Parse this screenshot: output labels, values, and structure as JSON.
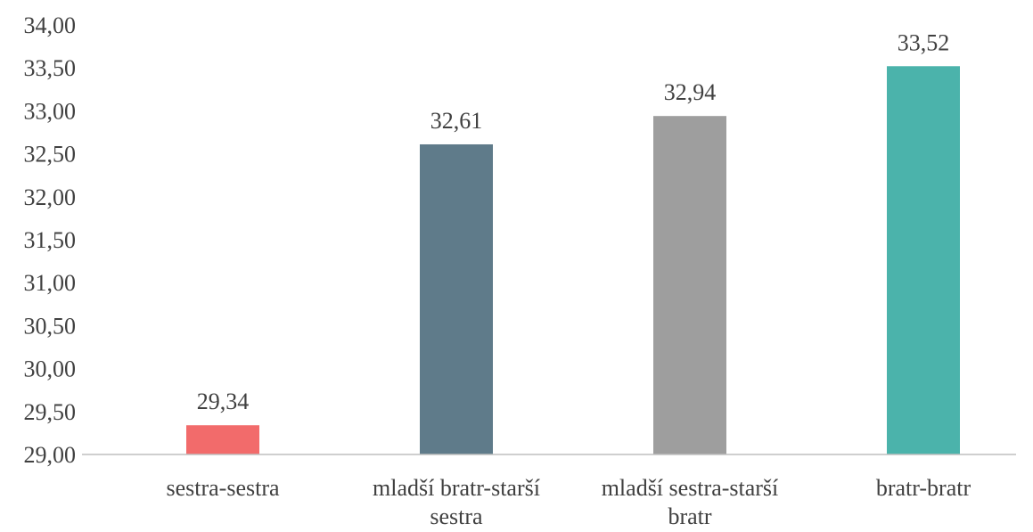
{
  "chart_data": {
    "type": "bar",
    "categories": [
      "sestra-sestra",
      "mladší bratr-starší sestra",
      "mladší sestra-starší bratr",
      "bratr-bratr"
    ],
    "values": [
      29.34,
      32.61,
      32.94,
      33.52
    ],
    "value_labels": [
      "29,34",
      "32,61",
      "32,94",
      "33,52"
    ],
    "colors": [
      "#f26b6b",
      "#5f7b8a",
      "#9e9e9e",
      "#4bb3ab"
    ],
    "ylim": [
      29,
      34
    ],
    "yticks": [
      {
        "value": 29,
        "label": "29,00"
      },
      {
        "value": 29.5,
        "label": "29,50"
      },
      {
        "value": 30,
        "label": "30,00"
      },
      {
        "value": 30.5,
        "label": "30,50"
      },
      {
        "value": 31,
        "label": "31,00"
      },
      {
        "value": 31.5,
        "label": "31,50"
      },
      {
        "value": 32,
        "label": "32,00"
      },
      {
        "value": 32.5,
        "label": "32,50"
      },
      {
        "value": 33,
        "label": "33,00"
      },
      {
        "value": 33.5,
        "label": "33,50"
      },
      {
        "value": 34,
        "label": "34,00"
      }
    ],
    "grid": false
  }
}
